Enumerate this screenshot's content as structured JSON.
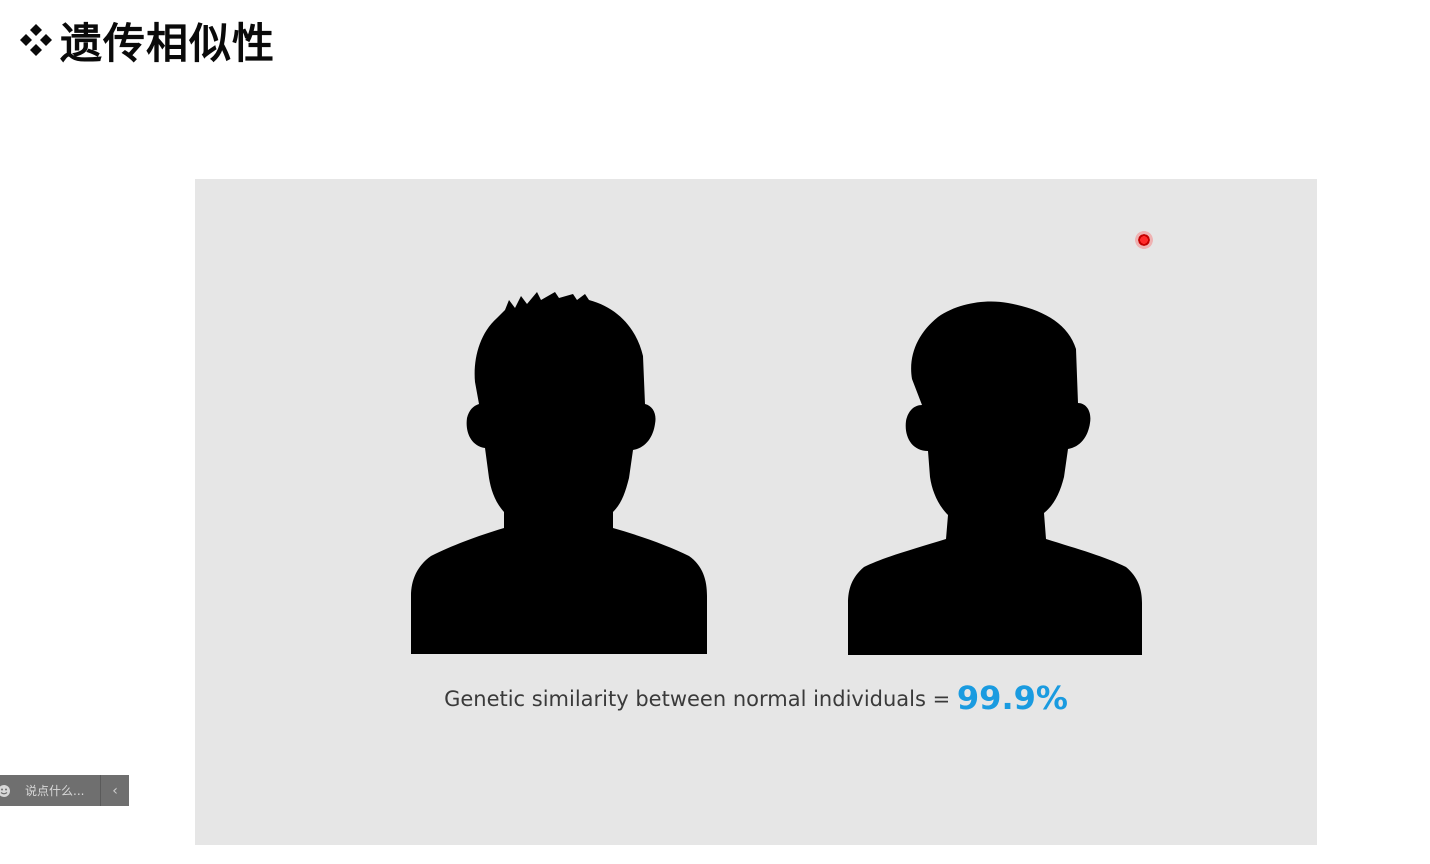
{
  "slide": {
    "title": "遗传相似性",
    "bullet_icon": "four-diamond-bullet-icon"
  },
  "figure": {
    "caption_text": "Genetic similarity between normal individuals = ",
    "caption_value": "99.9%",
    "accent_color": "#1a9be0",
    "background_color": "#e6e6e6",
    "icons": [
      "person-silhouette-icon",
      "person-silhouette-icon"
    ]
  },
  "laser_pointer": {
    "icon": "laser-pointer-dot-icon",
    "color": "#e00000"
  },
  "comment_bar": {
    "icon": "emoji-icon",
    "placeholder": "说点什么...",
    "collapse_icon": "chevron-left-icon",
    "collapse_label": "‹"
  }
}
